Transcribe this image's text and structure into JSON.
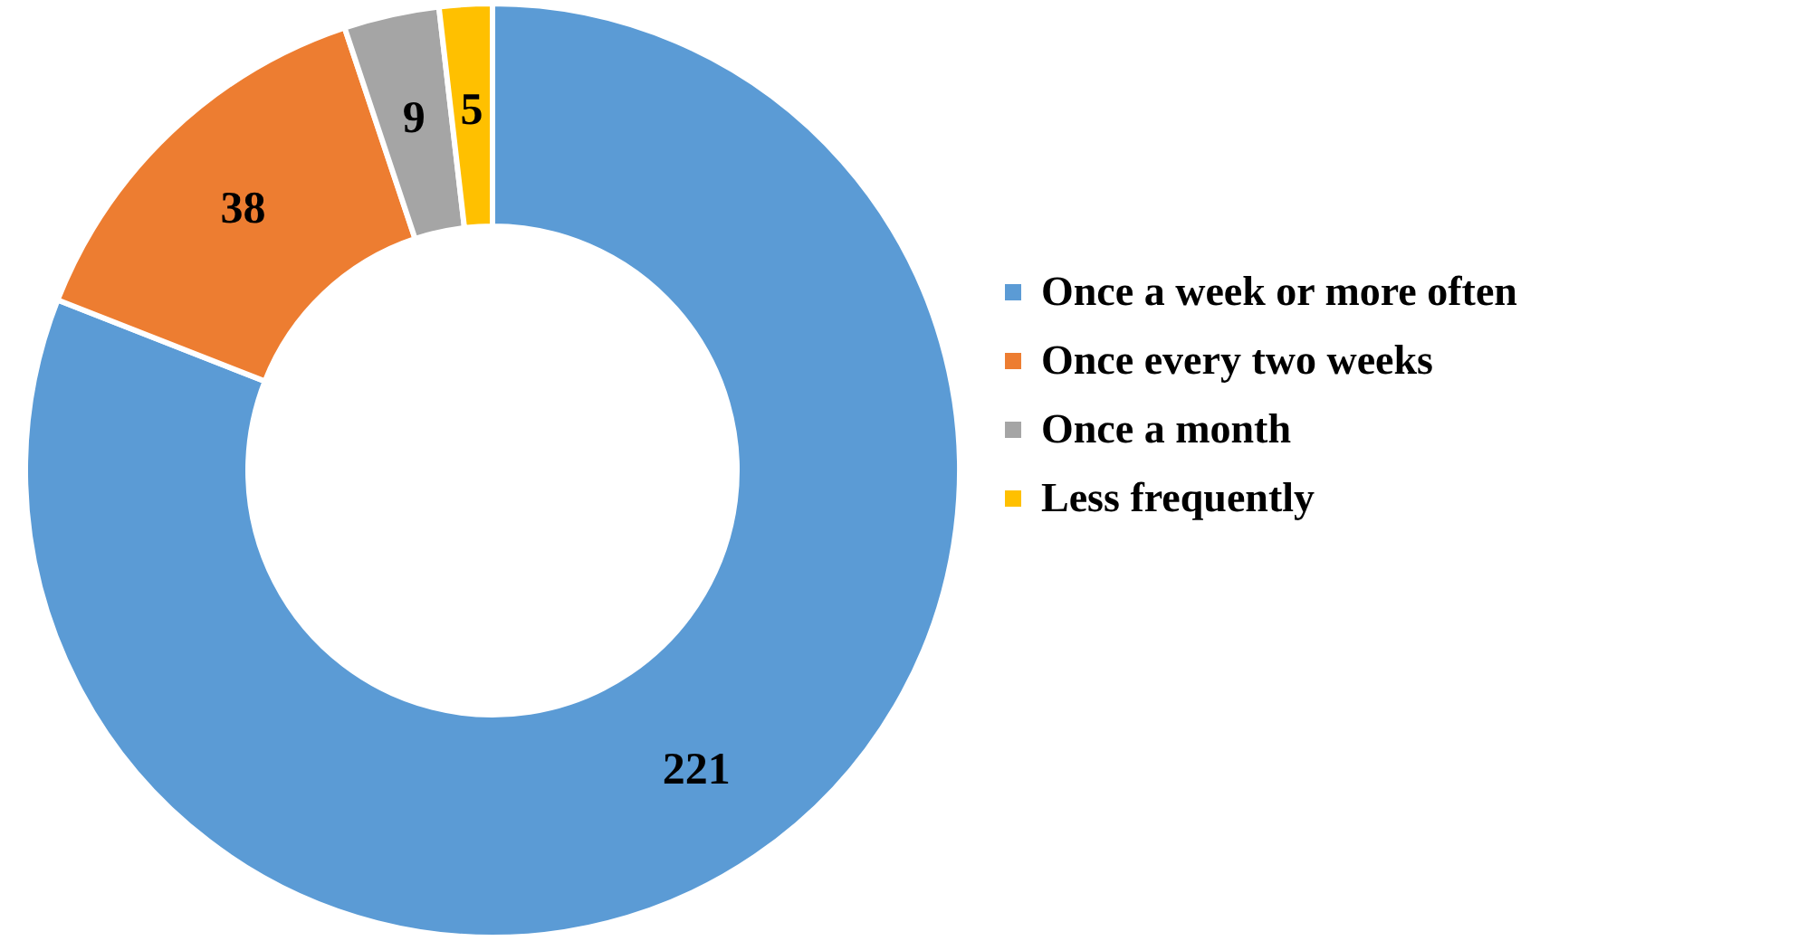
{
  "chart_data": {
    "type": "donut",
    "categories": [
      "Once a week or more often",
      "Once every two weeks",
      "Once a month",
      "Less frequently"
    ],
    "values": [
      221,
      38,
      9,
      5
    ],
    "colors": [
      "#5b9bd5",
      "#ed7d31",
      "#a5a5a5",
      "#ffc000"
    ],
    "data_labels": true,
    "legend": "right"
  }
}
